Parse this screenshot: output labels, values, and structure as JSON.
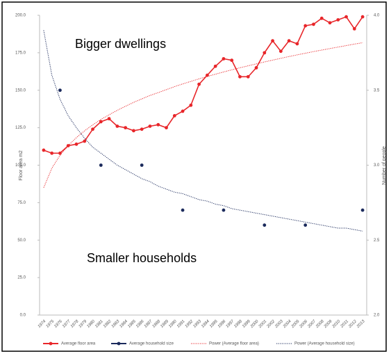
{
  "chart_data": {
    "type": "line",
    "y_label": "Floor area m2",
    "y2_label": "Number of people",
    "annotations": [
      "Bigger dwellings",
      "Smaller households"
    ],
    "categories": [
      "1974",
      "1975",
      "1976",
      "1977",
      "1978",
      "1979",
      "1980",
      "1981",
      "1982",
      "1983",
      "1984",
      "1985",
      "1986",
      "1987",
      "1988",
      "1989",
      "1990",
      "1991",
      "1992",
      "1993",
      "1994",
      "1995",
      "1996",
      "1997",
      "1998",
      "1999",
      "2000",
      "2001",
      "2002",
      "2003",
      "2004",
      "2005",
      "2006",
      "2007",
      "2008",
      "2009",
      "2010",
      "2011",
      "2012",
      "2013"
    ],
    "series": [
      {
        "name": "Average floor area",
        "color": "#e8262a",
        "markers": true,
        "line_style": "solid",
        "values": [
          110,
          108,
          108,
          113,
          114,
          116,
          124,
          129,
          131,
          126,
          125,
          123,
          124,
          126,
          127,
          125,
          133,
          136,
          140,
          154,
          160,
          166,
          171,
          170,
          159,
          159,
          165,
          175,
          183,
          176,
          183,
          181,
          193,
          194,
          198,
          195,
          197,
          199,
          191,
          199
        ]
      },
      {
        "name": "Average household size",
        "color": "#1b2a5c",
        "markers": true,
        "line_style": "solid",
        "axis": "y2",
        "values": [
          null,
          null,
          3.5,
          null,
          null,
          null,
          null,
          3.0,
          null,
          null,
          null,
          null,
          3.0,
          null,
          null,
          null,
          null,
          2.7,
          null,
          null,
          null,
          null,
          2.7,
          null,
          null,
          null,
          null,
          2.6,
          null,
          null,
          null,
          null,
          2.6,
          null,
          null,
          null,
          null,
          null,
          null,
          2.7
        ]
      },
      {
        "name": "Power (Average floor area)",
        "color": "#e8262a",
        "markers": false,
        "line_style": "dotted",
        "values": [
          85,
          98.0,
          106.6,
          113.0,
          118.4,
          122.9,
          126.9,
          130.5,
          133.6,
          136.6,
          139.3,
          141.9,
          144.2,
          146.5,
          148.4,
          150.4,
          152.4,
          154.2,
          155.9,
          157.6,
          159.2,
          160.7,
          162.2,
          163.6,
          165.0,
          166.3,
          167.6,
          168.9,
          170.1,
          171.3,
          172.5,
          173.6,
          174.7,
          175.8,
          176.8,
          177.8,
          178.8,
          179.8,
          180.8,
          181.7
        ]
      },
      {
        "name": "Power (Average household size)",
        "color": "#1b2a5c",
        "markers": false,
        "line_style": "dotted",
        "axis": "y2",
        "values": [
          3.9,
          3.6,
          3.44,
          3.33,
          3.25,
          3.18,
          3.12,
          3.08,
          3.04,
          3.0,
          2.97,
          2.94,
          2.91,
          2.89,
          2.86,
          2.84,
          2.82,
          2.81,
          2.79,
          2.77,
          2.76,
          2.74,
          2.73,
          2.71,
          2.7,
          2.69,
          2.68,
          2.67,
          2.66,
          2.65,
          2.64,
          2.63,
          2.62,
          2.61,
          2.6,
          2.59,
          2.58,
          2.58,
          2.57,
          2.56
        ]
      }
    ],
    "ylim": [
      0,
      200
    ],
    "yticks": [
      {
        "value": 0,
        "label": "0.0"
      },
      {
        "value": 25,
        "label": "25.0"
      },
      {
        "value": 50,
        "label": "50.0"
      },
      {
        "value": 75,
        "label": "75.0"
      },
      {
        "value": 100,
        "label": "100.0"
      },
      {
        "value": 125,
        "label": "125.0"
      },
      {
        "value": 150,
        "label": "150.0"
      },
      {
        "value": 175,
        "label": "175.0"
      },
      {
        "value": 200,
        "label": "200.0"
      }
    ],
    "y2lim": [
      2,
      4
    ],
    "y2ticks": [
      {
        "value": 2,
        "label": "2.0"
      },
      {
        "value": 2.5,
        "label": "2.5"
      },
      {
        "value": 3,
        "label": "3.0"
      },
      {
        "value": 3.5,
        "label": "3.5"
      },
      {
        "value": 4,
        "label": "4.0"
      }
    ],
    "grid": false,
    "legend": "bottom"
  }
}
